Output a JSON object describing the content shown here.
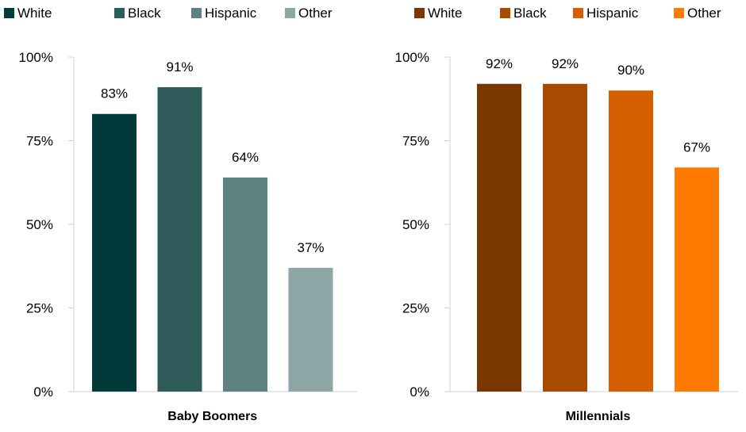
{
  "chart_data": [
    {
      "type": "bar",
      "xlabel": "Baby Boomers",
      "ylabel": "",
      "ylim": [
        0,
        100
      ],
      "yticks": [
        "0%",
        "25%",
        "50%",
        "75%",
        "100%"
      ],
      "categories": [
        "White",
        "Black",
        "Hispanic",
        "Other"
      ],
      "values": [
        83,
        91,
        64,
        37
      ],
      "value_labels": [
        "83%",
        "91%",
        "64%",
        "37%"
      ],
      "colors": [
        "#003a3a",
        "#2f5b5b",
        "#5e8282",
        "#8ea6a6"
      ],
      "legend": {
        "position": "top",
        "entries": [
          "White",
          "Black",
          "Hispanic",
          "Other"
        ]
      },
      "grid": false
    },
    {
      "type": "bar",
      "xlabel": "Millennials",
      "ylabel": "",
      "ylim": [
        0,
        100
      ],
      "yticks": [
        "0%",
        "25%",
        "50%",
        "75%",
        "100%"
      ],
      "categories": [
        "White",
        "Black",
        "Hispanic",
        "Other"
      ],
      "values": [
        92,
        92,
        90,
        67
      ],
      "value_labels": [
        "92%",
        "92%",
        "90%",
        "67%"
      ],
      "colors": [
        "#7a3700",
        "#a84b00",
        "#d35f00",
        "#ff7a00"
      ],
      "legend": {
        "position": "top",
        "entries": [
          "White",
          "Black",
          "Hispanic",
          "Other"
        ]
      },
      "grid": false
    }
  ]
}
